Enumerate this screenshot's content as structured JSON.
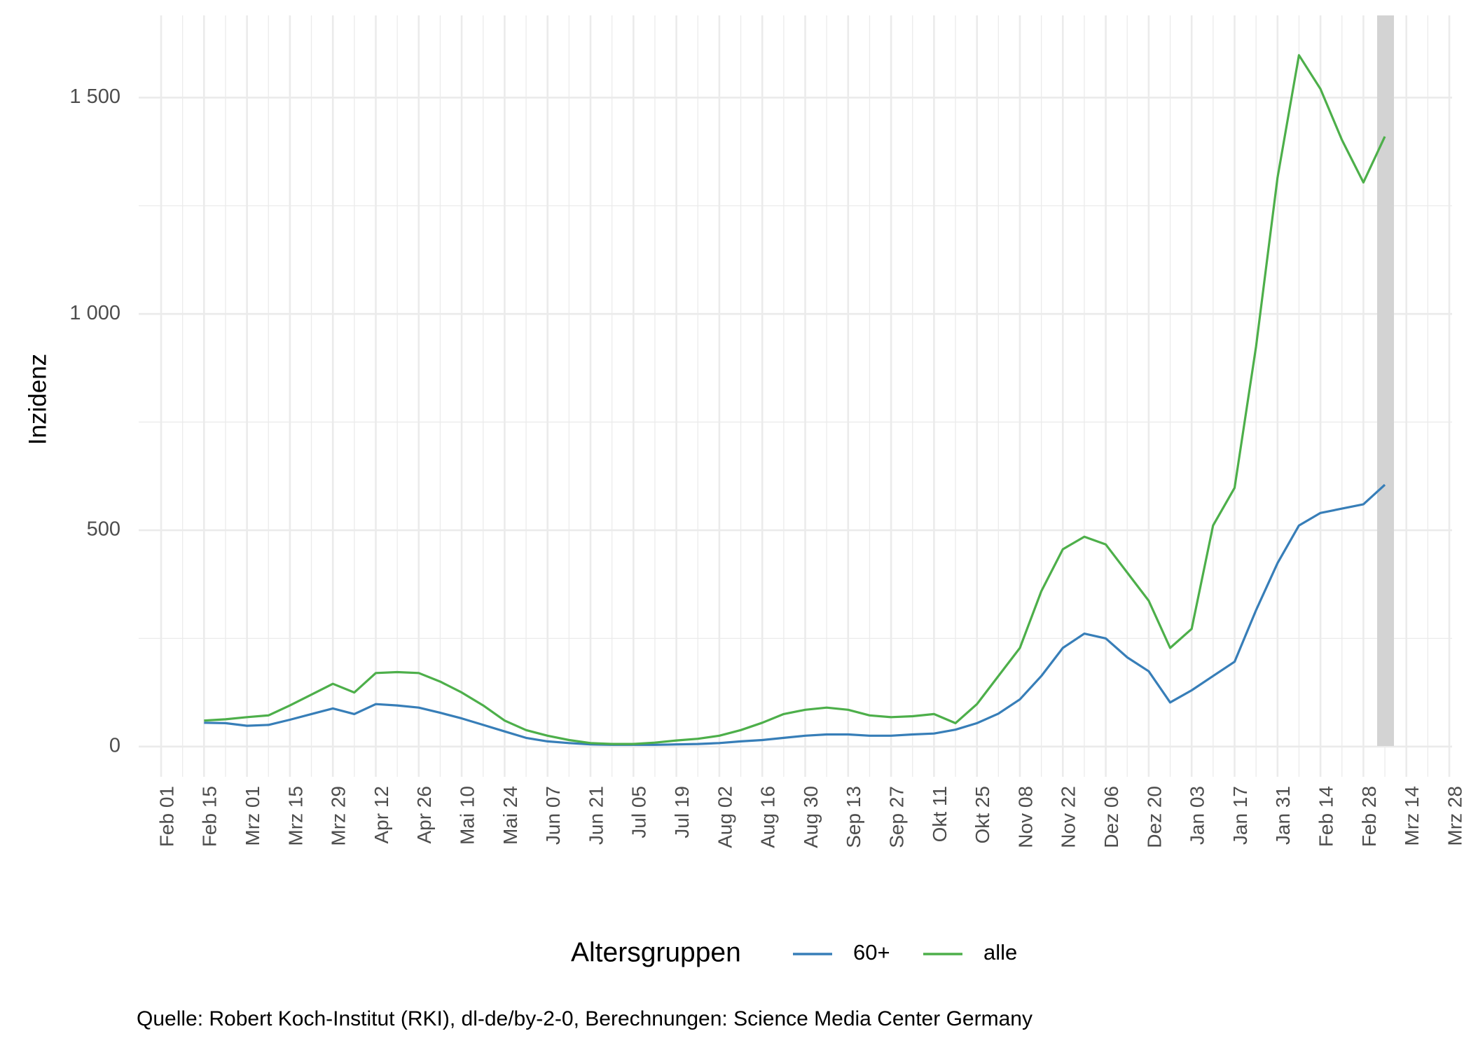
{
  "chart_data": {
    "type": "line",
    "y_label": "Inzidenz",
    "legend_title": "Altersgruppen",
    "caption": "Quelle: Robert Koch-Institut (RKI), dl-de/by-2-0, Berechnungen: Science Media Center Germany",
    "x": [
      "Feb 01",
      null,
      "Feb 15",
      null,
      "Mrz 01",
      null,
      "Mrz 15",
      null,
      "Mrz 29",
      null,
      "Apr 12",
      null,
      "Apr 26",
      null,
      "Mai 10",
      null,
      "Mai 24",
      null,
      "Jun 07",
      null,
      "Jun 21",
      null,
      "Jul 05",
      null,
      "Jul 19",
      null,
      "Aug 02",
      null,
      "Aug 16",
      null,
      "Aug 30",
      null,
      "Sep 13",
      null,
      "Sep 27",
      null,
      "Okt 11",
      null,
      "Okt 25",
      null,
      "Nov 08",
      null,
      "Nov 22",
      null,
      "Dez 06",
      null,
      "Dez 20",
      null,
      "Jan 03",
      null,
      "Jan 17",
      null,
      "Jan 31",
      null,
      "Feb 14",
      null,
      "Feb 28",
      null,
      "Mrz 14",
      null,
      "Mrz 28"
    ],
    "series": [
      {
        "name": "60+",
        "color": "#377eb8",
        "values": [
          null,
          null,
          55,
          54,
          48,
          50,
          62,
          75,
          88,
          75,
          98,
          95,
          90,
          78,
          65,
          50,
          35,
          20,
          12,
          8,
          5,
          4,
          4,
          4,
          5,
          6,
          8,
          12,
          15,
          20,
          25,
          28,
          28,
          25,
          25,
          28,
          30,
          39,
          54,
          76,
          109,
          163,
          228,
          261,
          250,
          206,
          174,
          102,
          130,
          163,
          196,
          315,
          424,
          511,
          540,
          550,
          560,
          605,
          null,
          null,
          null
        ]
      },
      {
        "name": "alle",
        "color": "#4daf4a",
        "values": [
          null,
          null,
          60,
          63,
          68,
          72,
          95,
          120,
          145,
          125,
          170,
          172,
          170,
          150,
          125,
          95,
          60,
          38,
          25,
          15,
          8,
          6,
          6,
          9,
          14,
          18,
          25,
          38,
          55,
          75,
          85,
          90,
          85,
          72,
          68,
          70,
          75,
          54,
          98,
          163,
          228,
          359,
          456,
          485,
          467,
          402,
          337,
          228,
          272,
          511,
          598,
          924,
          1315,
          1598,
          1520,
          1402,
          1304,
          1410,
          null,
          null,
          null
        ]
      }
    ],
    "ylim": [
      -70,
      1690
    ],
    "yticks": [
      0,
      500,
      {
        "value": 1000,
        "label": "1 000"
      },
      {
        "value": 1500,
        "label": "1 500"
      }
    ],
    "grid": true
  }
}
